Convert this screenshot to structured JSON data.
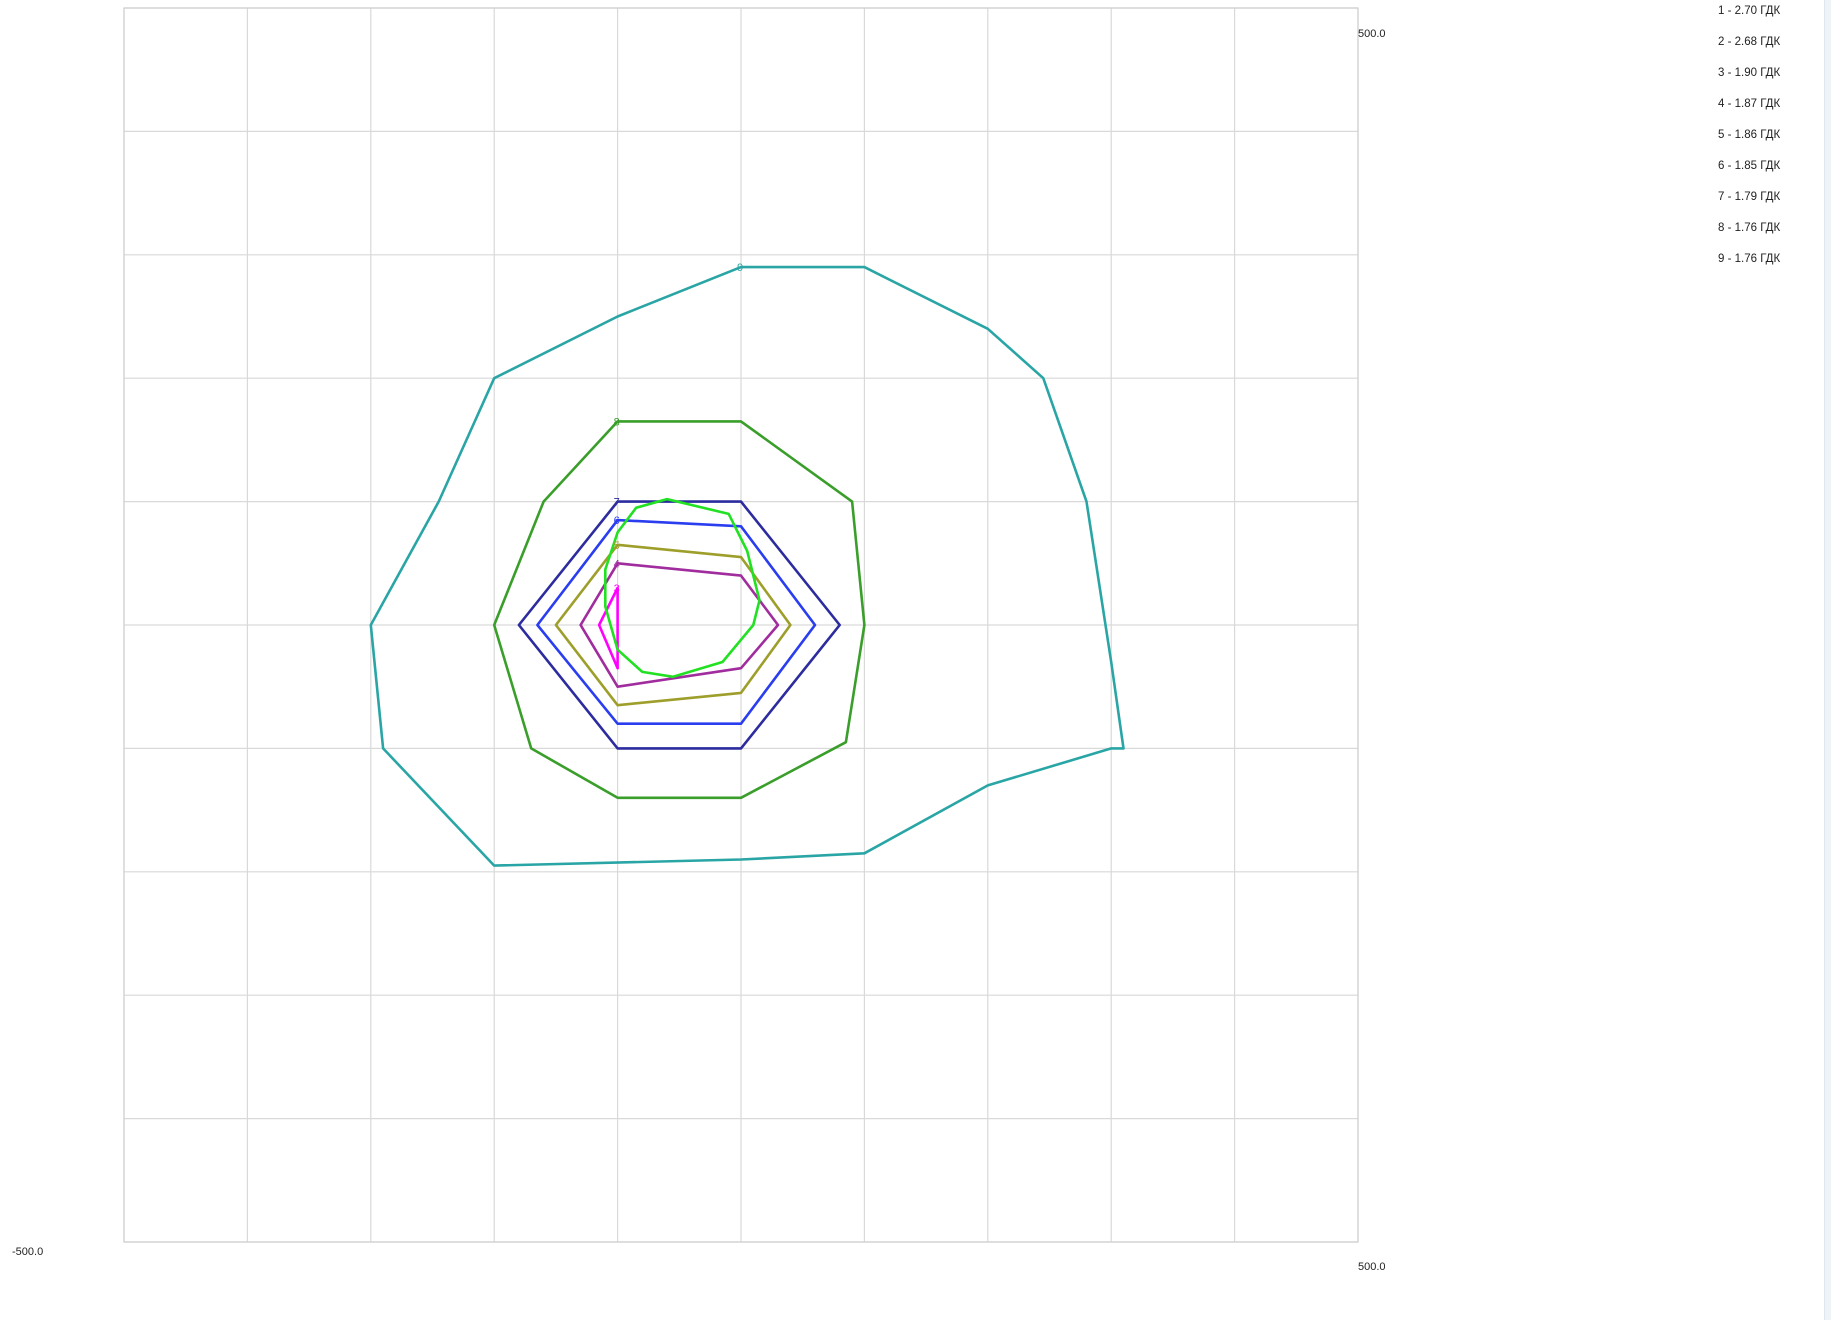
{
  "chart_data": {
    "type": "contour",
    "title": "",
    "xlabel": "",
    "ylabel": "",
    "xlim": [
      -500,
      500
    ],
    "ylim": [
      -500,
      500
    ],
    "grid": true,
    "grid_divisions": 10,
    "axis_labels": {
      "x_min": "-500.0",
      "x_max": "500.0",
      "y_max": "500.0"
    },
    "legend_placement": "top-right",
    "legend": [
      "1 - 2.70 ГДК",
      "2 - 2.68 ГДК",
      "3 - 1.90 ГДК",
      "4 - 1.87 ГДК",
      "5 - 1.86 ГДК",
      "6 - 1.85 ГДК",
      "7 - 1.79 ГДК",
      "8 - 1.76 ГДК",
      "9 - 1.76 ГДК"
    ],
    "series": [
      {
        "label": "9",
        "color": "#2aa5a5",
        "closed": true,
        "points": [
          [
            0,
            290
          ],
          [
            -100,
            250
          ],
          [
            -200,
            200
          ],
          [
            -245,
            100
          ],
          [
            -300,
            0
          ],
          [
            -290,
            -100
          ],
          [
            -200,
            -195
          ],
          [
            0,
            -190
          ],
          [
            100,
            -185
          ],
          [
            200,
            -130
          ],
          [
            300,
            -100
          ],
          [
            310,
            -100
          ],
          [
            300,
            -30
          ],
          [
            280,
            100
          ],
          [
            245,
            200
          ],
          [
            200,
            240
          ],
          [
            100,
            290
          ]
        ]
      },
      {
        "label": "8",
        "color": "#3a9e2a",
        "closed": true,
        "points": [
          [
            -100,
            165
          ],
          [
            0,
            165
          ],
          [
            90,
            100
          ],
          [
            100,
            0
          ],
          [
            85,
            -95
          ],
          [
            0,
            -140
          ],
          [
            -100,
            -140
          ],
          [
            -170,
            -100
          ],
          [
            -200,
            0
          ],
          [
            -160,
            100
          ]
        ]
      },
      {
        "label": "7",
        "color": "#2c2c9e",
        "closed": true,
        "points": [
          [
            -100,
            100
          ],
          [
            0,
            100
          ],
          [
            80,
            0
          ],
          [
            0,
            -100
          ],
          [
            -100,
            -100
          ],
          [
            -180,
            0
          ]
        ]
      },
      {
        "label": "6",
        "color": "#2a3ef0",
        "closed": true,
        "points": [
          [
            -100,
            85
          ],
          [
            0,
            80
          ],
          [
            60,
            0
          ],
          [
            0,
            -80
          ],
          [
            -100,
            -80
          ],
          [
            -165,
            0
          ]
        ]
      },
      {
        "label": "5",
        "color": "#9e9e2a",
        "closed": true,
        "points": [
          [
            -100,
            65
          ],
          [
            0,
            55
          ],
          [
            40,
            0
          ],
          [
            0,
            -55
          ],
          [
            -100,
            -65
          ],
          [
            -150,
            0
          ]
        ]
      },
      {
        "label": "4",
        "color": "#a02c9e",
        "closed": true,
        "points": [
          [
            -100,
            50
          ],
          [
            0,
            40
          ],
          [
            30,
            0
          ],
          [
            0,
            -35
          ],
          [
            -100,
            -50
          ],
          [
            -130,
            0
          ]
        ]
      },
      {
        "label": "3",
        "color": "#ff00ff",
        "closed": true,
        "points": [
          [
            -100,
            30
          ],
          [
            -100,
            -35
          ],
          [
            -115,
            0
          ]
        ]
      },
      {
        "label": "",
        "color": "#22e022",
        "closed": true,
        "points": [
          [
            -60,
            102
          ],
          [
            -10,
            90
          ],
          [
            5,
            60
          ],
          [
            15,
            20
          ],
          [
            10,
            0
          ],
          [
            -15,
            -30
          ],
          [
            -55,
            -42
          ],
          [
            -80,
            -38
          ],
          [
            -100,
            -20
          ],
          [
            -110,
            15
          ],
          [
            -110,
            45
          ],
          [
            -100,
            75
          ],
          [
            -85,
            95
          ]
        ]
      }
    ]
  }
}
